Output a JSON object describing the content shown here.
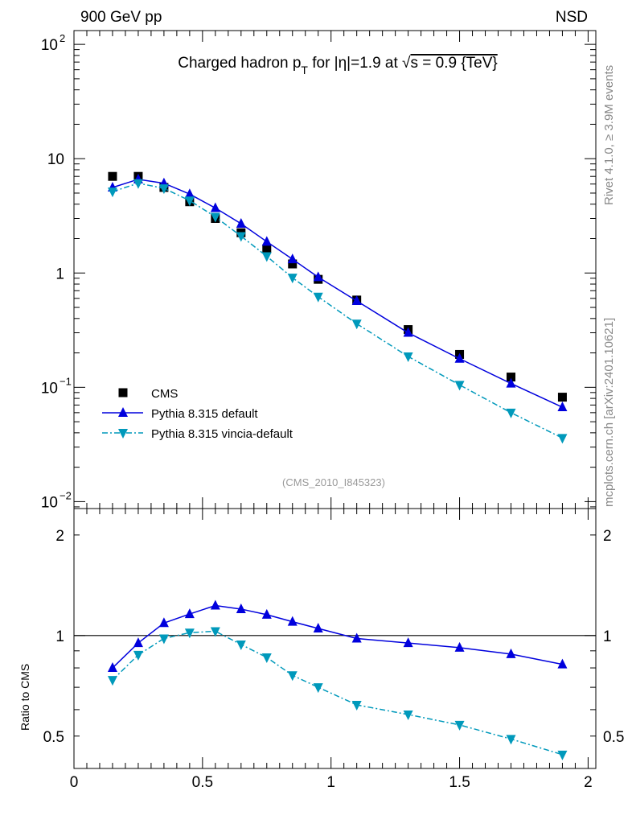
{
  "chart_data": [
    {
      "type": "scatter",
      "panel": "main",
      "header_left": "900 GeV pp",
      "header_right": "NSD",
      "title": "Charged hadron p_T for |η|=1.9 at √s = 0.9 {TeV}",
      "title_parts": {
        "pre": "Charged hadron p",
        "sub": "T",
        "post": " for |η|=1.9 at ",
        "sqrt": "√",
        "post2": "s = 0.9 {TeV}"
      },
      "yscale": "log",
      "ylim": [
        0.0087,
        132
      ],
      "xlim": [
        0,
        2.03
      ],
      "ytick_labels": [
        {
          "v": 100,
          "base": "10",
          "exp": "2"
        },
        {
          "v": 10,
          "base": "10",
          "exp": ""
        },
        {
          "v": 1,
          "base": "1",
          "exp": ""
        },
        {
          "v": 0.1,
          "base": "10",
          "exp": "−1"
        },
        {
          "v": 0.01,
          "base": "10",
          "exp": "−2"
        }
      ],
      "x": [
        0.15,
        0.25,
        0.35,
        0.45,
        0.55,
        0.65,
        0.75,
        0.85,
        0.95,
        1.1,
        1.3,
        1.5,
        1.7,
        1.9
      ],
      "series": [
        {
          "name": "CMS",
          "color": "#000000",
          "marker": "square",
          "values": [
            7.0,
            7.0,
            5.6,
            4.2,
            3.0,
            2.25,
            1.63,
            1.2,
            0.88,
            0.58,
            0.32,
            0.194,
            0.123,
            0.082
          ]
        },
        {
          "name": "Pythia 8.315 default",
          "color": "#0000dd",
          "marker": "triangle-up",
          "line": "solid",
          "values": [
            5.6,
            6.6,
            6.1,
            4.9,
            3.7,
            2.7,
            1.88,
            1.32,
            0.92,
            0.57,
            0.3,
            0.178,
            0.108,
            0.067
          ]
        },
        {
          "name": "Pythia 8.315 vincia-default",
          "color": "#0099bb",
          "marker": "triangle-down",
          "line": "dashdot",
          "values": [
            5.15,
            6.1,
            5.5,
            4.3,
            3.1,
            2.1,
            1.4,
            0.91,
            0.62,
            0.36,
            0.186,
            0.105,
            0.06,
            0.036
          ]
        }
      ],
      "legend": "bottom-left",
      "watermark": "(CMS_2010_I845323)",
      "side_text_top": "Rivet 4.1.0, ≥ 3.9M events",
      "side_text_bottom": "mcplots.cern.ch [arXiv:2401.10621]"
    },
    {
      "type": "line",
      "panel": "ratio",
      "ylabel": "Ratio to CMS",
      "yscale": "log",
      "ylim": [
        0.4,
        2.4
      ],
      "xlim": [
        0,
        2.03
      ],
      "ytick_labels": [
        {
          "v": 2,
          "label": "2"
        },
        {
          "v": 1,
          "label": "1"
        },
        {
          "v": 0.5,
          "label": "0.5"
        }
      ],
      "xtick_labels": [
        {
          "v": 0,
          "label": "0"
        },
        {
          "v": 0.5,
          "label": "0.5"
        },
        {
          "v": 1,
          "label": "1"
        },
        {
          "v": 1.5,
          "label": "1.5"
        },
        {
          "v": 2,
          "label": "2"
        }
      ],
      "x": [
        0.15,
        0.25,
        0.35,
        0.45,
        0.55,
        0.65,
        0.75,
        0.85,
        0.95,
        1.1,
        1.3,
        1.5,
        1.7,
        1.9
      ],
      "reference_line": 1,
      "series": [
        {
          "name": "Pythia 8.315 default",
          "color": "#0000dd",
          "marker": "triangle-up",
          "line": "solid",
          "values": [
            0.8,
            0.95,
            1.09,
            1.16,
            1.23,
            1.2,
            1.155,
            1.1,
            1.05,
            0.98,
            0.95,
            0.92,
            0.88,
            0.82
          ]
        },
        {
          "name": "Pythia 8.315 vincia-default",
          "color": "#0099bb",
          "marker": "triangle-down",
          "line": "dashdot",
          "values": [
            0.736,
            0.875,
            0.98,
            1.02,
            1.03,
            0.94,
            0.86,
            0.76,
            0.7,
            0.62,
            0.58,
            0.54,
            0.49,
            0.44
          ]
        }
      ]
    }
  ]
}
